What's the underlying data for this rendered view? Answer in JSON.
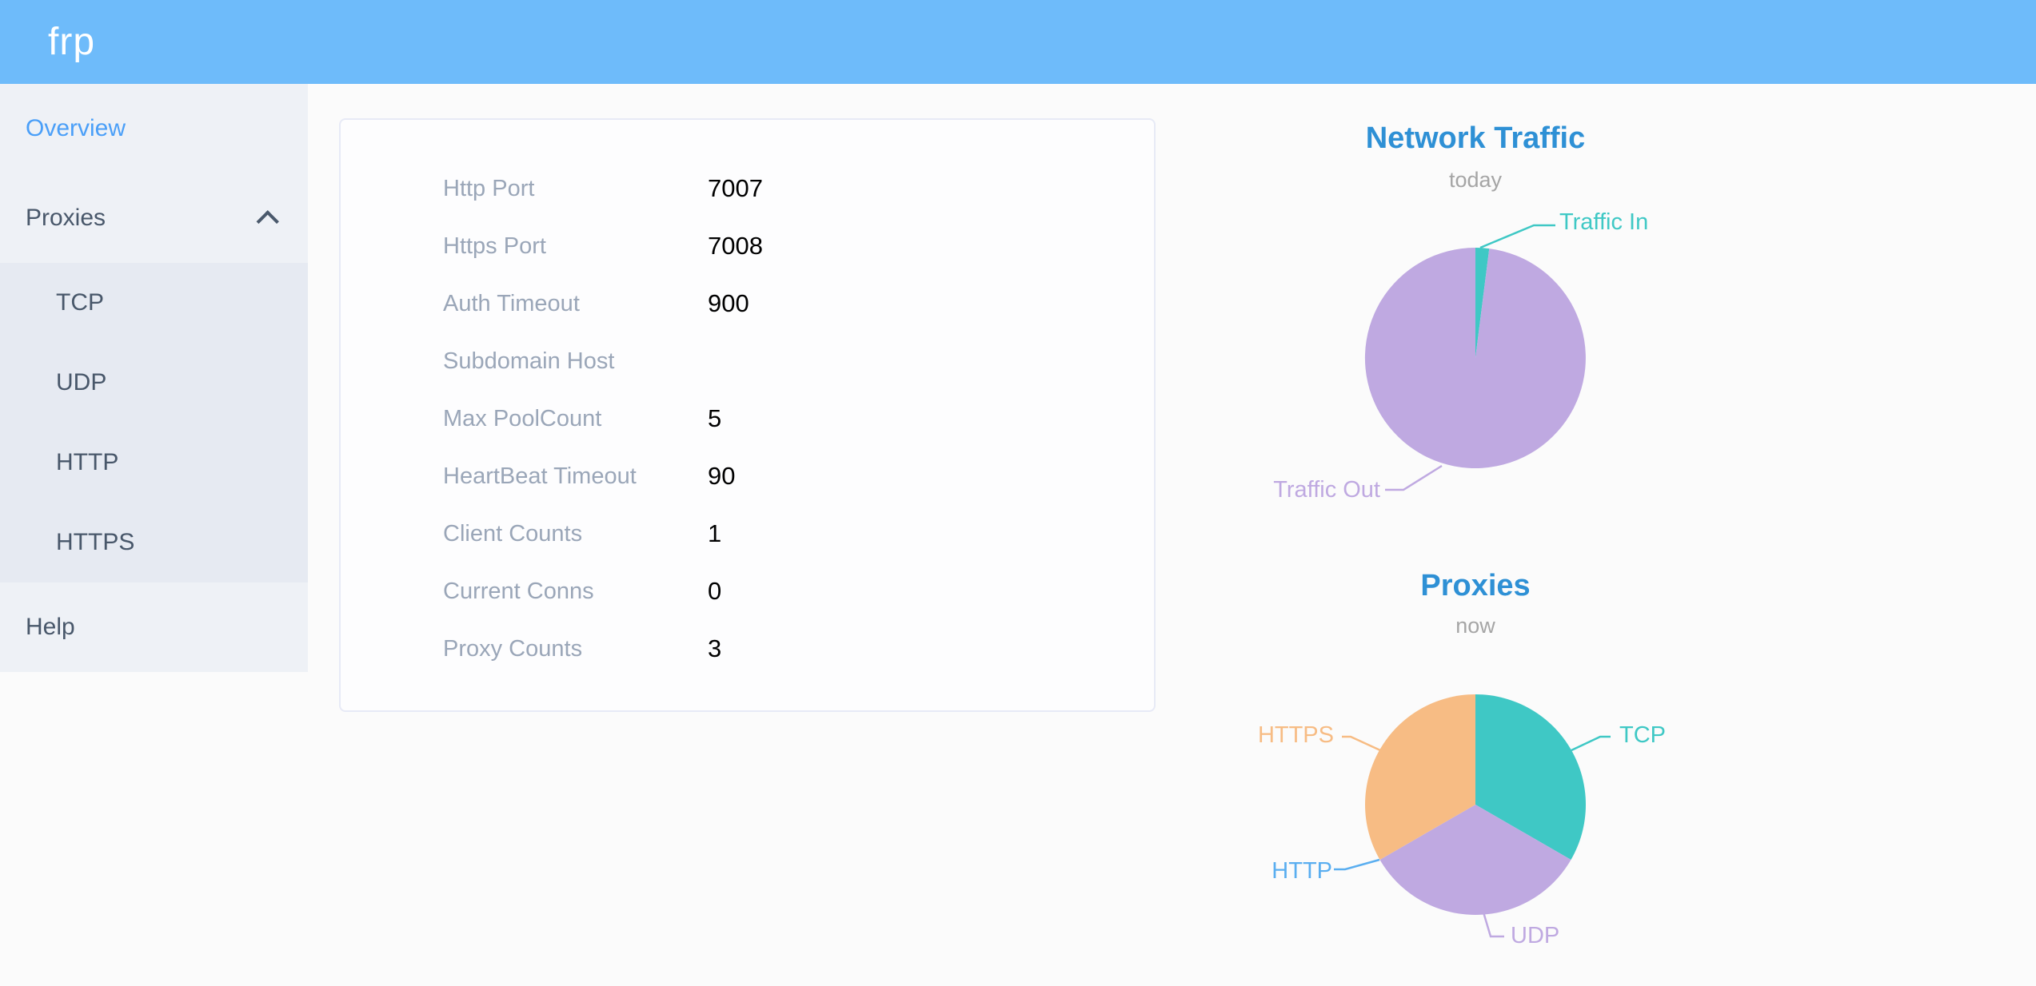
{
  "app": {
    "logo": "frp",
    "header_color": "#6ebbfa"
  },
  "sidebar": {
    "items": [
      {
        "label": "Overview",
        "active": true
      },
      {
        "label": "Proxies",
        "expanded": true,
        "children": [
          "TCP",
          "UDP",
          "HTTP",
          "HTTPS"
        ]
      },
      {
        "label": "Help"
      }
    ],
    "active_color": "#4a9ff8",
    "text_color": "#48576a"
  },
  "server_info": {
    "rows": [
      {
        "label": "Http Port",
        "value": "7007"
      },
      {
        "label": "Https Port",
        "value": "7008"
      },
      {
        "label": "Auth Timeout",
        "value": "900"
      },
      {
        "label": "Subdomain Host",
        "value": ""
      },
      {
        "label": "Max PoolCount",
        "value": "5"
      },
      {
        "label": "HeartBeat Timeout",
        "value": "90"
      },
      {
        "label": "Client Counts",
        "value": "1"
      },
      {
        "label": "Current Conns",
        "value": "0"
      },
      {
        "label": "Proxy Counts",
        "value": "3"
      }
    ],
    "label_color": "#9aa6b8",
    "value_color": "#000000"
  },
  "chart_data": [
    {
      "type": "pie",
      "title": "Network Traffic",
      "subtitle": "today",
      "title_color": "#2e90d5",
      "legend_position": "callout-labels",
      "series": [
        {
          "name": "Traffic In",
          "value": 2,
          "color": "#3fc8c5"
        },
        {
          "name": "Traffic Out",
          "value": 98,
          "color": "#bfa9e1"
        }
      ]
    },
    {
      "type": "pie",
      "title": "Proxies",
      "subtitle": "now",
      "title_color": "#2e90d5",
      "legend_position": "callout-labels",
      "series": [
        {
          "name": "TCP",
          "value": 1,
          "color": "#3fc8c5"
        },
        {
          "name": "UDP",
          "value": 1,
          "color": "#bfa9e1"
        },
        {
          "name": "HTTP",
          "value": 0,
          "color": "#5aaef0"
        },
        {
          "name": "HTTPS",
          "value": 1,
          "color": "#f7bc84"
        }
      ]
    }
  ]
}
